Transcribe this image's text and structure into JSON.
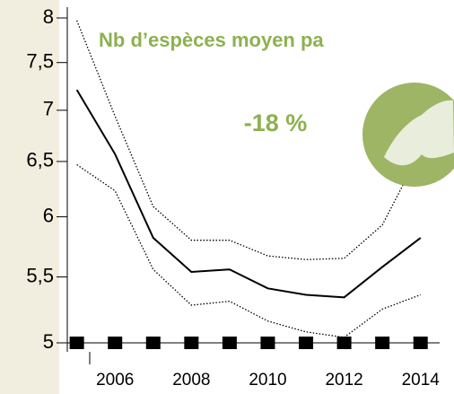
{
  "chart_data": {
    "type": "line",
    "title": "Nb d’espèces moyen pa",
    "annotation": "-18 %",
    "x": [
      2005,
      2006,
      2007,
      2008,
      2009,
      2010,
      2011,
      2012,
      2013,
      2014
    ],
    "series": [
      {
        "color": "#000000",
        "style": "solid",
        "values": [
          7.21,
          6.57,
          5.82,
          5.54,
          5.56,
          5.41,
          5.36,
          5.34,
          5.58,
          5.82
        ]
      },
      {
        "color": "#000000",
        "style": "dotted",
        "values": [
          7.97,
          6.94,
          6.09,
          5.8,
          5.8,
          5.67,
          5.64,
          5.65,
          5.93,
          6.6
        ]
      },
      {
        "color": "#000000",
        "style": "dotted",
        "values": [
          6.47,
          6.23,
          5.56,
          5.28,
          5.31,
          5.16,
          5.08,
          5.04,
          5.25,
          5.36
        ]
      }
    ],
    "xlim": [
      2004.75,
      2014.5
    ],
    "xticks": [
      2006,
      2008,
      2010,
      2012,
      2014
    ],
    "ylim": [
      5,
      8
    ],
    "ylog": true,
    "yticks": [
      5,
      {
        "value": 5.5,
        "label": "5,5"
      },
      6,
      {
        "value": 6.5,
        "label": "6,5"
      },
      7,
      {
        "value": 7.5,
        "label": "7,5"
      },
      8
    ],
    "title_color": "#8db14f"
  }
}
